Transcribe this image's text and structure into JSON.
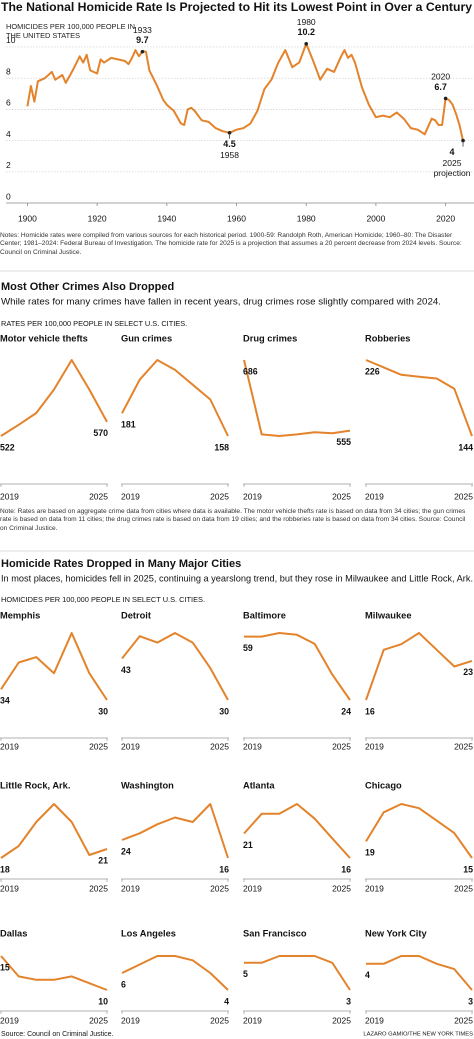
{
  "chart_data": [
    {
      "type": "line",
      "title": "The National Homicide Rate Is Projected to Hit its Lowest Point in Over a Century",
      "ylabel": "HOMICIDES PER 100,000 PEOPLE IN THE UNITED STATES",
      "x": [
        1900,
        1901,
        1902,
        1903,
        1905,
        1907,
        1908,
        1910,
        1911,
        1913,
        1915,
        1916,
        1917,
        1918,
        1920,
        1921,
        1922,
        1924,
        1926,
        1928,
        1929,
        1930,
        1931,
        1932,
        1933,
        1934,
        1935,
        1937,
        1939,
        1940,
        1942,
        1944,
        1945,
        1946,
        1947,
        1948,
        1950,
        1952,
        1954,
        1956,
        1958,
        1960,
        1962,
        1964,
        1966,
        1968,
        1970,
        1972,
        1974,
        1976,
        1978,
        1980,
        1982,
        1984,
        1986,
        1988,
        1990,
        1991,
        1992,
        1993,
        1994,
        1996,
        1998,
        2000,
        2002,
        2004,
        2006,
        2008,
        2010,
        2012,
        2014,
        2015,
        2016,
        2017,
        2018,
        2019,
        2020,
        2021,
        2022,
        2023,
        2024,
        2025
      ],
      "values": [
        6.2,
        7.5,
        6.5,
        7.8,
        8.0,
        8.4,
        7.9,
        8.2,
        7.7,
        8.5,
        9.4,
        9.0,
        9.5,
        8.5,
        8.3,
        9.2,
        9.0,
        9.3,
        9.2,
        9.1,
        8.9,
        9.3,
        9.8,
        9.4,
        9.7,
        9.7,
        8.5,
        7.6,
        6.6,
        6.3,
        5.9,
        5.1,
        5.0,
        6.0,
        6.1,
        5.9,
        5.3,
        5.2,
        4.8,
        4.6,
        4.5,
        4.7,
        4.8,
        5.1,
        5.9,
        7.3,
        7.9,
        9.0,
        9.8,
        8.7,
        9.0,
        10.2,
        9.1,
        7.9,
        8.6,
        8.4,
        9.4,
        9.8,
        9.3,
        9.5,
        9.0,
        7.4,
        6.3,
        5.5,
        5.6,
        5.5,
        5.8,
        5.4,
        4.8,
        4.7,
        4.4,
        4.9,
        5.4,
        5.3,
        5.0,
        5.0,
        6.7,
        6.6,
        6.3,
        5.7,
        5.0,
        4.0
      ],
      "color": "#e3832b",
      "xlim": [
        1895,
        2027
      ],
      "xticks": [
        1900,
        1920,
        1940,
        1960,
        1980,
        2000,
        2020
      ],
      "ylim": [
        0,
        10.6
      ],
      "yticks": [
        0,
        2,
        4,
        6,
        8,
        10
      ],
      "grid": true,
      "annotations": [
        {
          "x": 1933,
          "y": 9.7
        },
        {
          "x": 1980,
          "y": 10.2
        },
        {
          "x": 2020,
          "y": 6.7
        },
        {
          "x": 1958,
          "y": 4.5
        },
        {
          "x": 2025,
          "y": 4.0,
          "note": "projection"
        }
      ],
      "note": "Notes: Homicide rates were compiled from various sources for each historical period. 1900-59: Randolph Roth, American Homicide; 1960–80: The Disaster Center; 1981–2024: Federal Bureau of Investigation. The homicide rate for 2025 is a projection that assumes a 20 percent decrease from 2024 levels. Source: Council on Criminal Justice."
    },
    {
      "type": "line",
      "title": "Motor vehicle thefts",
      "x": [
        2019,
        2020,
        2021,
        2022,
        2023,
        2024,
        2025
      ],
      "values": [
        522,
        560,
        600,
        680,
        780,
        680,
        570
      ],
      "xticks": [
        2019,
        2025
      ],
      "color": "#e3832b"
    },
    {
      "type": "line",
      "title": "Gun crimes",
      "x": [
        2019,
        2020,
        2021,
        2022,
        2023,
        2024,
        2025
      ],
      "values": [
        181,
        215,
        235,
        225,
        210,
        195,
        158
      ],
      "xticks": [
        2019,
        2025
      ],
      "color": "#e3832b"
    },
    {
      "type": "line",
      "title": "Drug crimes",
      "x": [
        2019,
        2020,
        2021,
        2022,
        2023,
        2024,
        2025
      ],
      "values": [
        686,
        548,
        545,
        548,
        552,
        550,
        555
      ],
      "xticks": [
        2019,
        2025
      ],
      "color": "#e3832b"
    },
    {
      "type": "line",
      "title": "Robberies",
      "x": [
        2019,
        2020,
        2021,
        2022,
        2023,
        2024,
        2025
      ],
      "values": [
        226,
        218,
        210,
        208,
        206,
        195,
        144
      ],
      "xticks": [
        2019,
        2025
      ],
      "color": "#e3832b"
    },
    {
      "type": "line",
      "title": "Memphis",
      "x": [
        2019,
        2020,
        2021,
        2022,
        2023,
        2024,
        2025
      ],
      "values": [
        34,
        44,
        46,
        40,
        55,
        40,
        30
      ],
      "xticks": [
        2019,
        2025
      ],
      "color": "#e3832b"
    },
    {
      "type": "line",
      "title": "Detroit",
      "x": [
        2019,
        2020,
        2021,
        2022,
        2023,
        2024,
        2025
      ],
      "values": [
        43,
        50,
        48,
        51,
        48,
        40,
        30
      ],
      "xticks": [
        2019,
        2025
      ],
      "color": "#e3832b"
    },
    {
      "type": "line",
      "title": "Baltimore",
      "x": [
        2019,
        2020,
        2021,
        2022,
        2023,
        2024,
        2025
      ],
      "values": [
        59,
        59,
        61,
        60,
        55,
        38,
        24
      ],
      "xticks": [
        2019,
        2025
      ],
      "color": "#e3832b"
    },
    {
      "type": "line",
      "title": "Milwaukee",
      "x": [
        2019,
        2020,
        2021,
        2022,
        2023,
        2024,
        2025
      ],
      "values": [
        16,
        25,
        26,
        28,
        25,
        22,
        23
      ],
      "xticks": [
        2019,
        2025
      ],
      "color": "#e3832b"
    },
    {
      "type": "line",
      "title": "Little Rock, Ark.",
      "x": [
        2019,
        2020,
        2021,
        2022,
        2023,
        2024,
        2025
      ],
      "values": [
        18,
        22,
        30,
        36,
        30,
        19,
        21
      ],
      "xticks": [
        2019,
        2025
      ],
      "color": "#e3832b"
    },
    {
      "type": "line",
      "title": "Washington",
      "x": [
        2019,
        2020,
        2021,
        2022,
        2023,
        2024,
        2025
      ],
      "values": [
        24,
        27,
        31,
        34,
        32,
        40,
        16
      ],
      "xticks": [
        2019,
        2025
      ],
      "color": "#e3832b"
    },
    {
      "type": "line",
      "title": "Atlanta",
      "x": [
        2019,
        2020,
        2021,
        2022,
        2023,
        2024,
        2025
      ],
      "values": [
        21,
        25,
        25,
        27,
        24,
        20,
        16
      ],
      "xticks": [
        2019,
        2025
      ],
      "color": "#e3832b"
    },
    {
      "type": "line",
      "title": "Chicago",
      "x": [
        2019,
        2020,
        2021,
        2022,
        2023,
        2024,
        2025
      ],
      "values": [
        19,
        26,
        28,
        27,
        24,
        21,
        15
      ],
      "xticks": [
        2019,
        2025
      ],
      "color": "#e3832b"
    },
    {
      "type": "line",
      "title": "Dallas",
      "x": [
        2019,
        2020,
        2021,
        2022,
        2023,
        2024,
        2025
      ],
      "values": [
        15,
        12,
        11.5,
        11.5,
        12,
        11,
        10
      ],
      "xticks": [
        2019,
        2025
      ],
      "color": "#e3832b"
    },
    {
      "type": "line",
      "title": "Los Angeles",
      "x": [
        2019,
        2020,
        2021,
        2022,
        2023,
        2024,
        2025
      ],
      "values": [
        6,
        7,
        8,
        8,
        7.5,
        6,
        4
      ],
      "xticks": [
        2019,
        2025
      ],
      "color": "#e3832b"
    },
    {
      "type": "line",
      "title": "San Francisco",
      "x": [
        2019,
        2020,
        2021,
        2022,
        2023,
        2024,
        2025
      ],
      "values": [
        5,
        5,
        5.5,
        5.5,
        5.5,
        5,
        3
      ],
      "xticks": [
        2019,
        2025
      ],
      "color": "#e3832b"
    },
    {
      "type": "line",
      "title": "New York City",
      "x": [
        2019,
        2020,
        2021,
        2022,
        2023,
        2024,
        2025
      ],
      "values": [
        4,
        4,
        4.3,
        4.3,
        4,
        3.8,
        3
      ],
      "xticks": [
        2019,
        2025
      ],
      "color": "#e3832b"
    }
  ],
  "sections": [
    {
      "title": "Most Other Crimes Also Dropped",
      "subtitle": "While rates for many crimes have fallen in recent years, drug crimes rose slightly compared with 2024.",
      "units": "RATES PER 100,000 PEOPLE IN SELECT U.S. CITIES.",
      "note": "Note: Rates are based on aggregate crime data from cities where data is available. The motor vehicle thefts rate is based on data from 34 cities; the gun crimes rate is based on data from 11 cities; the drug crimes rate is based on data from 19 cities; and the robberies rate is based on data from 34 cities. Source: Council on Criminal Justice."
    },
    {
      "title": "Homicide Rates Dropped in Many Major Cities",
      "subtitle": "In most places, homicides fell in 2025, continuing a yearslong trend, but they rose in Milwaukee and Little Rock, Ark.",
      "units": "HOMICIDES PER 100,000 PEOPLE IN SELECT U.S. CITIES."
    }
  ],
  "source": "Source: Council on Criminal Justice.",
  "credit": "LAZARO GAMIO/THE NEW YORK TIMES"
}
